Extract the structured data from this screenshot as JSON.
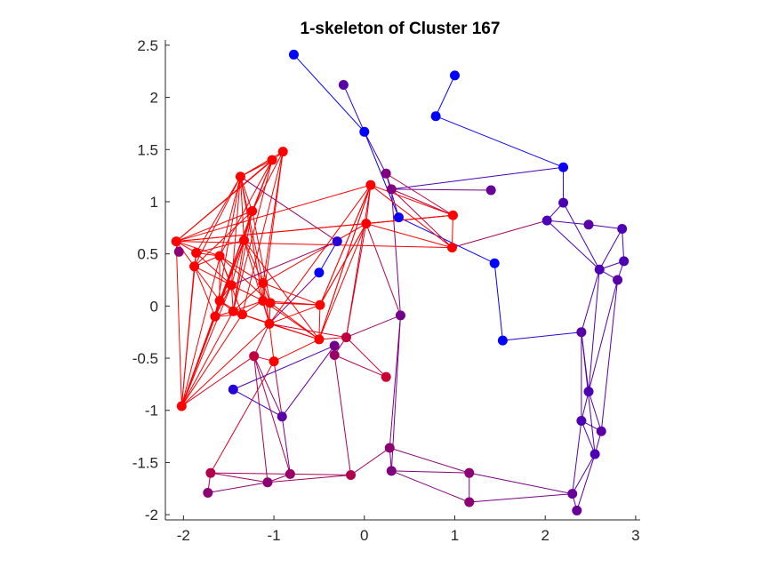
{
  "chart_data": {
    "type": "scatter",
    "title": "1-skeleton of Cluster 167",
    "xlabel": "",
    "ylabel": "",
    "xlim": [
      -2.2,
      3.05
    ],
    "ylim": [
      -2.05,
      2.55
    ],
    "xticks": [
      -2,
      -1,
      0,
      1,
      2,
      3
    ],
    "xtick_labels": [
      "-2",
      "-1",
      "0",
      "1",
      "2",
      "3"
    ],
    "yticks": [
      -2,
      -1.5,
      -1,
      -0.5,
      0,
      0.5,
      1,
      1.5,
      2,
      2.5
    ],
    "ytick_labels": [
      "-2",
      "-1.5",
      "-1",
      "-0.5",
      "0",
      "0.5",
      "1",
      "1.5",
      "2",
      "2.5"
    ],
    "grid": false,
    "color_scale": {
      "low": "#0000ff",
      "high": "#ff0000"
    },
    "nodes": [
      {
        "x": -0.78,
        "y": 2.41,
        "c": 0.0
      },
      {
        "x": 1.0,
        "y": 2.21,
        "c": 0.0
      },
      {
        "x": -0.23,
        "y": 2.12,
        "c": 0.35
      },
      {
        "x": 0.79,
        "y": 1.82,
        "c": 0.0
      },
      {
        "x": 0.0,
        "y": 1.67,
        "c": 0.0
      },
      {
        "x": -0.9,
        "y": 1.48,
        "c": 1.0
      },
      {
        "x": -1.02,
        "y": 1.4,
        "c": 1.0
      },
      {
        "x": 2.2,
        "y": 1.33,
        "c": 0.05
      },
      {
        "x": 0.24,
        "y": 1.27,
        "c": 0.5
      },
      {
        "x": -1.37,
        "y": 1.24,
        "c": 1.0
      },
      {
        "x": 0.07,
        "y": 1.16,
        "c": 1.0
      },
      {
        "x": 0.3,
        "y": 1.12,
        "c": 0.5
      },
      {
        "x": 1.4,
        "y": 1.11,
        "c": 0.4
      },
      {
        "x": 2.2,
        "y": 0.99,
        "c": 0.3
      },
      {
        "x": -1.24,
        "y": 0.91,
        "c": 1.0
      },
      {
        "x": 0.98,
        "y": 0.87,
        "c": 1.0
      },
      {
        "x": 0.38,
        "y": 0.85,
        "c": 0.05
      },
      {
        "x": 2.02,
        "y": 0.82,
        "c": 0.3
      },
      {
        "x": 0.02,
        "y": 0.79,
        "c": 1.0
      },
      {
        "x": 2.48,
        "y": 0.78,
        "c": 0.35
      },
      {
        "x": 2.85,
        "y": 0.74,
        "c": 0.3
      },
      {
        "x": -2.08,
        "y": 0.62,
        "c": 1.0
      },
      {
        "x": -1.33,
        "y": 0.63,
        "c": 1.0
      },
      {
        "x": -0.3,
        "y": 0.62,
        "c": 0.15
      },
      {
        "x": 0.97,
        "y": 0.56,
        "c": 1.0
      },
      {
        "x": -2.05,
        "y": 0.52,
        "c": 0.55
      },
      {
        "x": -1.86,
        "y": 0.51,
        "c": 1.0
      },
      {
        "x": -1.6,
        "y": 0.48,
        "c": 1.0
      },
      {
        "x": 2.87,
        "y": 0.43,
        "c": 0.3
      },
      {
        "x": 1.44,
        "y": 0.41,
        "c": 0.0
      },
      {
        "x": -1.88,
        "y": 0.38,
        "c": 1.0
      },
      {
        "x": 2.6,
        "y": 0.35,
        "c": 0.3
      },
      {
        "x": -0.5,
        "y": 0.32,
        "c": 0.0
      },
      {
        "x": 2.8,
        "y": 0.25,
        "c": 0.35
      },
      {
        "x": -1.12,
        "y": 0.22,
        "c": 1.0
      },
      {
        "x": -1.47,
        "y": 0.2,
        "c": 1.0
      },
      {
        "x": -1.12,
        "y": 0.05,
        "c": 1.0
      },
      {
        "x": -1.6,
        "y": 0.05,
        "c": 1.0
      },
      {
        "x": -1.04,
        "y": 0.03,
        "c": 1.0
      },
      {
        "x": -0.49,
        "y": 0.01,
        "c": 1.0
      },
      {
        "x": -1.45,
        "y": -0.05,
        "c": 1.0
      },
      {
        "x": -1.65,
        "y": -0.1,
        "c": 1.0
      },
      {
        "x": -1.35,
        "y": -0.08,
        "c": 1.0
      },
      {
        "x": 0.4,
        "y": -0.09,
        "c": 0.45
      },
      {
        "x": -1.05,
        "y": -0.17,
        "c": 1.0
      },
      {
        "x": 2.4,
        "y": -0.25,
        "c": 0.35
      },
      {
        "x": -0.2,
        "y": -0.3,
        "c": 0.75
      },
      {
        "x": -0.5,
        "y": -0.32,
        "c": 1.0
      },
      {
        "x": 1.53,
        "y": -0.33,
        "c": 0.0
      },
      {
        "x": -0.33,
        "y": -0.38,
        "c": 0.45
      },
      {
        "x": -0.33,
        "y": -0.47,
        "c": 0.6
      },
      {
        "x": -1.22,
        "y": -0.48,
        "c": 0.75
      },
      {
        "x": -1.0,
        "y": -0.53,
        "c": 1.0
      },
      {
        "x": 0.24,
        "y": -0.68,
        "c": 0.8
      },
      {
        "x": -1.45,
        "y": -0.8,
        "c": 0.15
      },
      {
        "x": 2.48,
        "y": -0.82,
        "c": 0.3
      },
      {
        "x": -2.02,
        "y": -0.96,
        "c": 1.0
      },
      {
        "x": -0.91,
        "y": -1.06,
        "c": 0.35
      },
      {
        "x": 2.4,
        "y": -1.1,
        "c": 0.3
      },
      {
        "x": 2.62,
        "y": -1.2,
        "c": 0.35
      },
      {
        "x": 0.28,
        "y": -1.36,
        "c": 0.55
      },
      {
        "x": 2.55,
        "y": -1.42,
        "c": 0.3
      },
      {
        "x": 0.3,
        "y": -1.58,
        "c": 0.5
      },
      {
        "x": 1.16,
        "y": -1.6,
        "c": 0.55
      },
      {
        "x": -1.7,
        "y": -1.6,
        "c": 0.7
      },
      {
        "x": -0.82,
        "y": -1.61,
        "c": 0.6
      },
      {
        "x": -0.15,
        "y": -1.62,
        "c": 0.7
      },
      {
        "x": -1.07,
        "y": -1.69,
        "c": 0.55
      },
      {
        "x": -1.73,
        "y": -1.79,
        "c": 0.55
      },
      {
        "x": 2.3,
        "y": -1.8,
        "c": 0.4
      },
      {
        "x": 1.16,
        "y": -1.88,
        "c": 0.55
      },
      {
        "x": 2.35,
        "y": -1.96,
        "c": 0.4
      }
    ],
    "edges": [
      [
        0,
        4
      ],
      [
        4,
        2
      ],
      [
        4,
        8
      ],
      [
        4,
        16
      ],
      [
        16,
        29
      ],
      [
        29,
        48
      ],
      [
        48,
        45
      ],
      [
        3,
        1
      ],
      [
        3,
        7
      ],
      [
        7,
        13
      ],
      [
        7,
        11
      ],
      [
        8,
        11
      ],
      [
        8,
        16
      ],
      [
        8,
        15
      ],
      [
        11,
        12
      ],
      [
        11,
        24
      ],
      [
        11,
        15
      ],
      [
        13,
        17
      ],
      [
        17,
        19
      ],
      [
        19,
        20
      ],
      [
        17,
        31
      ],
      [
        17,
        24
      ],
      [
        13,
        31
      ],
      [
        20,
        28
      ],
      [
        20,
        31
      ],
      [
        28,
        31
      ],
      [
        28,
        33
      ],
      [
        31,
        33
      ],
      [
        31,
        45
      ],
      [
        31,
        55
      ],
      [
        33,
        55
      ],
      [
        33,
        59
      ],
      [
        45,
        55
      ],
      [
        45,
        58
      ],
      [
        45,
        61
      ],
      [
        55,
        58
      ],
      [
        55,
        59
      ],
      [
        58,
        59
      ],
      [
        58,
        61
      ],
      [
        59,
        61
      ],
      [
        61,
        69
      ],
      [
        61,
        71
      ],
      [
        58,
        69
      ],
      [
        69,
        71
      ],
      [
        69,
        63
      ],
      [
        69,
        70
      ],
      [
        63,
        70
      ],
      [
        62,
        70
      ],
      [
        60,
        62
      ],
      [
        60,
        63
      ],
      [
        62,
        63
      ],
      [
        43,
        60
      ],
      [
        43,
        62
      ],
      [
        43,
        46
      ],
      [
        43,
        18
      ],
      [
        11,
        43
      ],
      [
        60,
        66
      ],
      [
        50,
        53
      ],
      [
        50,
        66
      ],
      [
        50,
        49
      ],
      [
        49,
        57
      ],
      [
        49,
        54
      ],
      [
        54,
        57
      ],
      [
        57,
        65
      ],
      [
        57,
        51
      ],
      [
        51,
        65
      ],
      [
        51,
        67
      ],
      [
        64,
        65
      ],
      [
        64,
        67
      ],
      [
        64,
        68
      ],
      [
        67,
        65
      ],
      [
        67,
        66
      ],
      [
        65,
        66
      ],
      [
        68,
        67
      ],
      [
        52,
        64
      ],
      [
        52,
        57
      ],
      [
        5,
        9
      ],
      [
        5,
        14
      ],
      [
        5,
        21
      ],
      [
        5,
        34
      ],
      [
        5,
        42
      ],
      [
        5,
        36
      ],
      [
        6,
        9
      ],
      [
        6,
        14
      ],
      [
        6,
        21
      ],
      [
        6,
        27
      ],
      [
        6,
        37
      ],
      [
        6,
        40
      ],
      [
        9,
        14
      ],
      [
        9,
        22
      ],
      [
        9,
        26
      ],
      [
        9,
        30
      ],
      [
        9,
        34
      ],
      [
        9,
        35
      ],
      [
        9,
        36
      ],
      [
        9,
        41
      ],
      [
        9,
        56
      ],
      [
        9,
        23
      ],
      [
        14,
        21
      ],
      [
        14,
        22
      ],
      [
        14,
        30
      ],
      [
        14,
        35
      ],
      [
        14,
        38
      ],
      [
        14,
        40
      ],
      [
        14,
        41
      ],
      [
        14,
        56
      ],
      [
        21,
        25
      ],
      [
        21,
        26
      ],
      [
        21,
        27
      ],
      [
        21,
        30
      ],
      [
        21,
        56
      ],
      [
        21,
        10
      ],
      [
        21,
        18
      ],
      [
        21,
        15
      ],
      [
        21,
        24
      ],
      [
        22,
        26
      ],
      [
        22,
        34
      ],
      [
        22,
        37
      ],
      [
        22,
        40
      ],
      [
        22,
        41
      ],
      [
        22,
        56
      ],
      [
        22,
        44
      ],
      [
        22,
        47
      ],
      [
        26,
        27
      ],
      [
        26,
        30
      ],
      [
        26,
        56
      ],
      [
        26,
        35
      ],
      [
        27,
        30
      ],
      [
        27,
        34
      ],
      [
        27,
        35
      ],
      [
        27,
        37
      ],
      [
        27,
        42
      ],
      [
        27,
        38
      ],
      [
        30,
        35
      ],
      [
        30,
        37
      ],
      [
        30,
        41
      ],
      [
        30,
        56
      ],
      [
        34,
        36
      ],
      [
        34,
        38
      ],
      [
        34,
        39
      ],
      [
        34,
        40
      ],
      [
        34,
        44
      ],
      [
        35,
        36
      ],
      [
        35,
        37
      ],
      [
        35,
        40
      ],
      [
        35,
        41
      ],
      [
        35,
        56
      ],
      [
        36,
        38
      ],
      [
        36,
        39
      ],
      [
        36,
        40
      ],
      [
        36,
        42
      ],
      [
        36,
        44
      ],
      [
        36,
        47
      ],
      [
        37,
        40
      ],
      [
        37,
        41
      ],
      [
        37,
        42
      ],
      [
        37,
        56
      ],
      [
        38,
        39
      ],
      [
        38,
        44
      ],
      [
        38,
        47
      ],
      [
        39,
        18
      ],
      [
        39,
        10
      ],
      [
        39,
        47
      ],
      [
        39,
        44
      ],
      [
        40,
        41
      ],
      [
        40,
        42
      ],
      [
        40,
        44
      ],
      [
        40,
        56
      ],
      [
        41,
        42
      ],
      [
        41,
        56
      ],
      [
        42,
        44
      ],
      [
        42,
        47
      ],
      [
        44,
        47
      ],
      [
        44,
        46
      ],
      [
        44,
        52
      ],
      [
        44,
        51
      ],
      [
        47,
        46
      ],
      [
        47,
        10
      ],
      [
        47,
        18
      ],
      [
        46,
        18
      ],
      [
        46,
        10
      ],
      [
        46,
        53
      ],
      [
        46,
        50
      ],
      [
        52,
        47
      ],
      [
        52,
        51
      ],
      [
        51,
        56
      ],
      [
        56,
        37
      ],
      [
        56,
        44
      ],
      [
        56,
        42
      ],
      [
        10,
        18
      ],
      [
        10,
        15
      ],
      [
        10,
        24
      ],
      [
        18,
        15
      ],
      [
        18,
        24
      ],
      [
        10,
        47
      ],
      [
        24,
        15
      ],
      [
        18,
        39
      ],
      [
        10,
        39
      ],
      [
        18,
        34
      ],
      [
        10,
        44
      ],
      [
        15,
        18
      ],
      [
        23,
        32
      ],
      [
        32,
        44
      ],
      [
        23,
        35
      ]
    ]
  }
}
